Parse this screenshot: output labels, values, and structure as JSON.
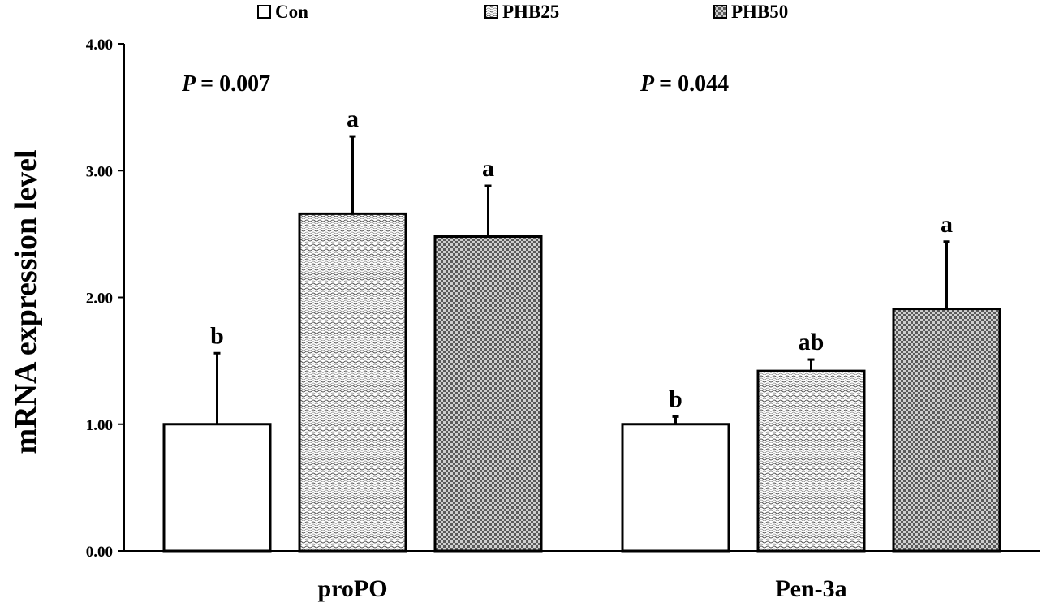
{
  "chart_data": {
    "type": "bar",
    "ylabel": "mRNA expression level",
    "ylim": [
      0,
      4
    ],
    "yticks": [
      "0.00",
      "1.00",
      "2.00",
      "3.00",
      "4.00"
    ],
    "categories": [
      "proPO",
      "Pen-3a"
    ],
    "series": [
      {
        "name": "Con",
        "pattern": "white",
        "values": [
          1.0,
          1.0
        ],
        "errors": [
          0.56,
          0.06
        ],
        "letters": [
          "b",
          "b"
        ]
      },
      {
        "name": "PHB25",
        "pattern": "wavy",
        "values": [
          2.66,
          1.42
        ],
        "errors": [
          0.61,
          0.09
        ],
        "letters": [
          "a",
          "ab"
        ]
      },
      {
        "name": "PHB50",
        "pattern": "checker",
        "values": [
          2.48,
          1.91
        ],
        "errors": [
          0.4,
          0.53
        ],
        "letters": [
          "a",
          "a"
        ]
      }
    ],
    "p_label": "P",
    "p_values": [
      "= 0.007",
      "= 0.044"
    ],
    "legend_position": "top",
    "grid": false
  }
}
